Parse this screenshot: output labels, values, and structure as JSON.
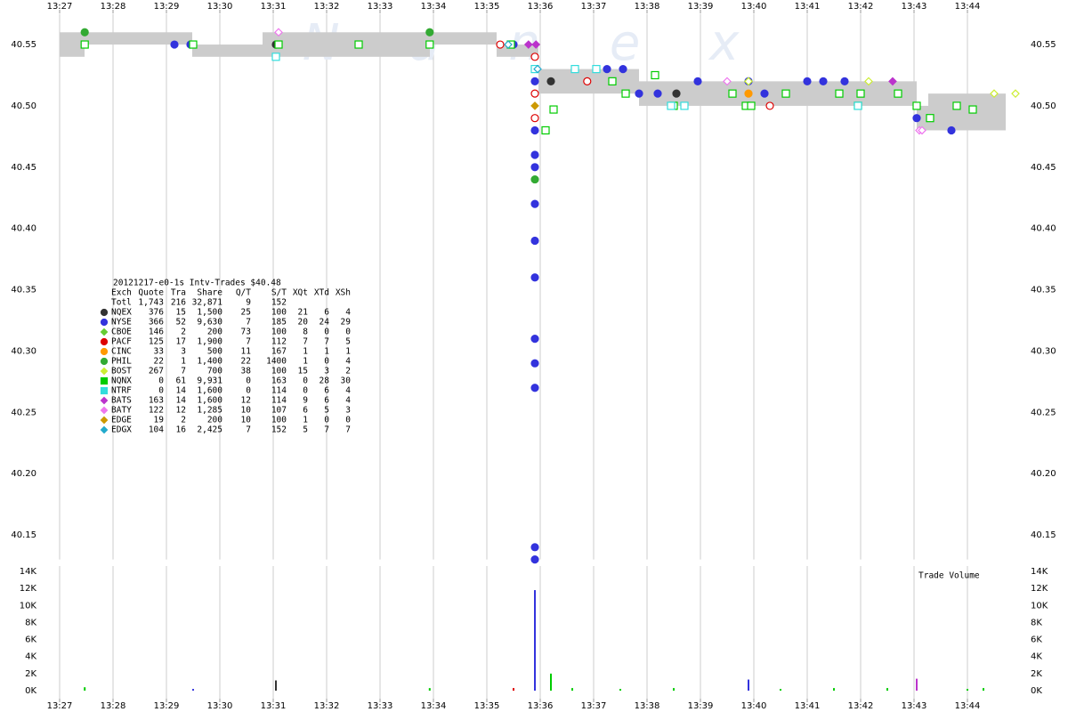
{
  "chart_data": [
    {
      "type": "scatter",
      "watermark": "N a n e x",
      "xlim": [
        26.55,
        45.2
      ],
      "xticks": [
        {
          "value": 27,
          "label": "13:27"
        },
        {
          "value": 28,
          "label": "13:28"
        },
        {
          "value": 29,
          "label": "13:29"
        },
        {
          "value": 30,
          "label": "13:30"
        },
        {
          "value": 31,
          "label": "13:31"
        },
        {
          "value": 32,
          "label": "13:32"
        },
        {
          "value": 33,
          "label": "13:33"
        },
        {
          "value": 34,
          "label": "13:34"
        },
        {
          "value": 35,
          "label": "13:35"
        },
        {
          "value": 36,
          "label": "13:36"
        },
        {
          "value": 37,
          "label": "13:37"
        },
        {
          "value": 38,
          "label": "13:38"
        },
        {
          "value": 39,
          "label": "13:39"
        },
        {
          "value": 40,
          "label": "13:40"
        },
        {
          "value": 41,
          "label": "13:41"
        },
        {
          "value": 42,
          "label": "13:42"
        },
        {
          "value": 43,
          "label": "13:43"
        },
        {
          "value": 44,
          "label": "13:44"
        }
      ],
      "ylim": [
        40.13,
        40.575
      ],
      "yticks": [
        40.15,
        {
          "value": 40.2,
          "label": "40.20"
        },
        40.25,
        {
          "value": 40.3,
          "label": "40.30"
        },
        40.35,
        {
          "value": 40.4,
          "label": "40.40"
        },
        40.45,
        {
          "value": 40.5,
          "label": "40.50"
        },
        40.55
      ],
      "grid": true,
      "nbbo": {
        "color": "#cccccc",
        "start": [
          27.0,
          27.467,
          29.483,
          30.8,
          33.933,
          35.183,
          35.967,
          37.85,
          39.883,
          43.05,
          43.267
        ],
        "end": [
          27.467,
          29.483,
          30.8,
          33.933,
          35.183,
          35.967,
          37.85,
          39.883,
          43.05,
          43.267,
          44.717
        ],
        "bid": [
          40.54,
          40.55,
          40.54,
          40.54,
          40.55,
          40.54,
          40.51,
          40.5,
          40.5,
          40.48,
          40.48
        ],
        "ask": [
          40.56,
          40.56,
          40.55,
          40.56,
          40.56,
          40.55,
          40.53,
          40.52,
          40.52,
          40.5,
          40.51
        ]
      },
      "series": [
        {
          "name": "NQEX",
          "color": "#333333",
          "marker": "circle",
          "filled": true,
          "x": [
            31.05,
            36.2,
            38.55
          ],
          "y": [
            40.55,
            40.52,
            40.51
          ]
        },
        {
          "name": "NYSE",
          "color": "#3333dd",
          "marker": "circle",
          "filled": true,
          "x": [
            29.15,
            29.45,
            35.5,
            35.9,
            35.9,
            35.9,
            35.9,
            35.9,
            35.9,
            35.9,
            35.9,
            35.9,
            35.9,
            35.9,
            35.9,
            37.25,
            37.55,
            37.85,
            38.2,
            38.95,
            39.9,
            40.2,
            41.0,
            41.3,
            41.7,
            43.05,
            43.7
          ],
          "y": [
            40.55,
            40.55,
            40.55,
            40.52,
            40.48,
            40.46,
            40.45,
            40.42,
            40.39,
            40.36,
            40.31,
            40.29,
            40.27,
            40.14,
            40.13,
            40.53,
            40.53,
            40.51,
            40.51,
            40.52,
            40.52,
            40.51,
            40.52,
            40.52,
            40.52,
            40.49,
            40.48
          ]
        },
        {
          "name": "CBOE",
          "color": "#66cc33",
          "marker": "diamond",
          "filled": true,
          "x": [
            39.9
          ],
          "y": [
            40.52
          ]
        },
        {
          "name": "PACF",
          "color": "#dd0000",
          "marker": "circle",
          "filled": false,
          "x": [
            35.25,
            35.9,
            35.9,
            35.9,
            36.88,
            40.3
          ],
          "y": [
            40.55,
            40.54,
            40.51,
            40.49,
            40.52,
            40.5
          ]
        },
        {
          "name": "CINC",
          "color": "#ff9900",
          "marker": "circle",
          "filled": true,
          "x": [
            39.9
          ],
          "y": [
            40.51
          ]
        },
        {
          "name": "PHIL",
          "color": "#33aa33",
          "marker": "circle",
          "filled": true,
          "x": [
            27.47,
            33.93,
            35.9
          ],
          "y": [
            40.56,
            40.56,
            40.44
          ]
        },
        {
          "name": "BOST",
          "color": "#ccee33",
          "marker": "diamond",
          "filled": false,
          "x": [
            39.9,
            42.15,
            44.5,
            44.9
          ],
          "y": [
            40.52,
            40.52,
            40.51,
            40.51
          ]
        },
        {
          "name": "NQNX",
          "color": "#00cc00",
          "marker": "square",
          "filled": false,
          "x": [
            27.47,
            29.5,
            31.1,
            32.6,
            33.93,
            35.45,
            36.1,
            36.25,
            37.35,
            37.6,
            38.15,
            38.5,
            39.6,
            39.85,
            39.95,
            40.6,
            41.6,
            41.95,
            42.0,
            42.7,
            43.05,
            43.3,
            43.8,
            44.1
          ],
          "y": [
            40.55,
            40.55,
            40.55,
            40.55,
            40.55,
            40.55,
            40.48,
            40.497,
            40.52,
            40.51,
            40.525,
            40.5,
            40.51,
            40.5,
            40.5,
            40.51,
            40.51,
            40.5,
            40.51,
            40.51,
            40.5,
            40.49,
            40.5,
            40.497
          ]
        },
        {
          "name": "NTRF",
          "color": "#33dddd",
          "marker": "square",
          "filled": false,
          "x": [
            31.05,
            35.9,
            36.65,
            37.05,
            38.45,
            38.7,
            41.95
          ],
          "y": [
            40.54,
            40.53,
            40.53,
            40.53,
            40.5,
            40.5,
            40.5
          ]
        },
        {
          "name": "BATS",
          "color": "#bb33cc",
          "marker": "diamond",
          "filled": true,
          "x": [
            35.78,
            35.92,
            42.6
          ],
          "y": [
            40.55,
            40.55,
            40.52
          ]
        },
        {
          "name": "BATY",
          "color": "#ee77ee",
          "marker": "diamond",
          "filled": false,
          "x": [
            31.1,
            39.5,
            43.1,
            43.15
          ],
          "y": [
            40.56,
            40.52,
            40.48,
            40.48
          ]
        },
        {
          "name": "EDGE",
          "color": "#cc9900",
          "marker": "diamond",
          "filled": true,
          "x": [
            35.9
          ],
          "y": [
            40.5
          ]
        },
        {
          "name": "EDGX",
          "color": "#22aacc",
          "marker": "diamond",
          "filled": false,
          "x": [
            35.4,
            35.95
          ],
          "y": [
            40.55,
            40.53
          ]
        }
      ],
      "table": {
        "title": "20121217-e0-1s Intv-Trades $40.48",
        "columns": [
          "Exch",
          "Quote",
          "Tra",
          "Share",
          "Q/T",
          "S/T",
          "XQt",
          "XTd",
          "XSh"
        ],
        "total": [
          "Totl",
          "1,743",
          "216",
          "32,871",
          "9",
          "152"
        ],
        "rows": [
          [
            "376",
            "15",
            "1,500",
            "25",
            "100",
            "21",
            "6",
            "4"
          ],
          [
            "366",
            "52",
            "9,630",
            "7",
            "185",
            "20",
            "24",
            "29"
          ],
          [
            "146",
            "2",
            "200",
            "73",
            "100",
            "8",
            "0",
            "0"
          ],
          [
            "125",
            "17",
            "1,900",
            "7",
            "112",
            "7",
            "7",
            "5"
          ],
          [
            "33",
            "3",
            "500",
            "11",
            "167",
            "1",
            "1",
            "1"
          ],
          [
            "22",
            "1",
            "1,400",
            "22",
            "1400",
            "1",
            "0",
            "4"
          ],
          [
            "267",
            "7",
            "700",
            "38",
            "100",
            "15",
            "3",
            "2"
          ],
          [
            "0",
            "61",
            "9,931",
            "0",
            "163",
            "0",
            "28",
            "30"
          ],
          [
            "0",
            "14",
            "1,600",
            "0",
            "114",
            "0",
            "6",
            "4"
          ],
          [
            "163",
            "14",
            "1,600",
            "12",
            "114",
            "9",
            "6",
            "4"
          ],
          [
            "122",
            "12",
            "1,285",
            "10",
            "107",
            "6",
            "5",
            "3"
          ],
          [
            "19",
            "2",
            "200",
            "10",
            "100",
            "1",
            "0",
            "0"
          ],
          [
            "104",
            "16",
            "2,425",
            "7",
            "152",
            "5",
            "7",
            "7"
          ]
        ]
      }
    },
    {
      "type": "bar",
      "title": "Trade Volume",
      "xlim": [
        26.55,
        45.2
      ],
      "xticks": [
        {
          "value": 27,
          "label": "13:27"
        },
        {
          "value": 28,
          "label": "13:28"
        },
        {
          "value": 29,
          "label": "13:29"
        },
        {
          "value": 30,
          "label": "13:30"
        },
        {
          "value": 31,
          "label": "13:31"
        },
        {
          "value": 32,
          "label": "13:32"
        },
        {
          "value": 33,
          "label": "13:33"
        },
        {
          "value": 34,
          "label": "13:34"
        },
        {
          "value": 35,
          "label": "13:35"
        },
        {
          "value": 36,
          "label": "13:36"
        },
        {
          "value": 37,
          "label": "13:37"
        },
        {
          "value": 38,
          "label": "13:38"
        },
        {
          "value": 39,
          "label": "13:39"
        },
        {
          "value": 40,
          "label": "13:40"
        },
        {
          "value": 41,
          "label": "13:41"
        },
        {
          "value": 42,
          "label": "13:42"
        },
        {
          "value": 43,
          "label": "13:43"
        },
        {
          "value": 44,
          "label": "13:44"
        }
      ],
      "ylim": [
        0,
        14000
      ],
      "yticks": [
        {
          "value": 0,
          "label": "0K"
        },
        {
          "value": 2000,
          "label": "2K"
        },
        {
          "value": 4000,
          "label": "4K"
        },
        {
          "value": 6000,
          "label": "6K"
        },
        {
          "value": 8000,
          "label": "8K"
        },
        {
          "value": 10000,
          "label": "10K"
        },
        {
          "value": 12000,
          "label": "12K"
        },
        {
          "value": 14000,
          "label": "14K"
        }
      ],
      "grid": true,
      "x": [
        27.47,
        29.5,
        31.05,
        33.93,
        35.5,
        35.9,
        36.2,
        36.6,
        37.5,
        38.5,
        39.9,
        40.5,
        41.5,
        42.5,
        43.05,
        44.0,
        44.3
      ],
      "values": [
        400,
        200,
        1200,
        300,
        300,
        11800,
        2000,
        300,
        200,
        300,
        1300,
        200,
        300,
        300,
        1400,
        200,
        300
      ],
      "colors": [
        "#00cc00",
        "#3333dd",
        "#333333",
        "#00cc00",
        "#dd0000",
        "#3333dd",
        "#00cc00",
        "#00cc00",
        "#00cc00",
        "#00cc00",
        "#3333dd",
        "#00cc00",
        "#00cc00",
        "#00cc00",
        "#bb33cc",
        "#00cc00",
        "#00cc00"
      ]
    }
  ]
}
